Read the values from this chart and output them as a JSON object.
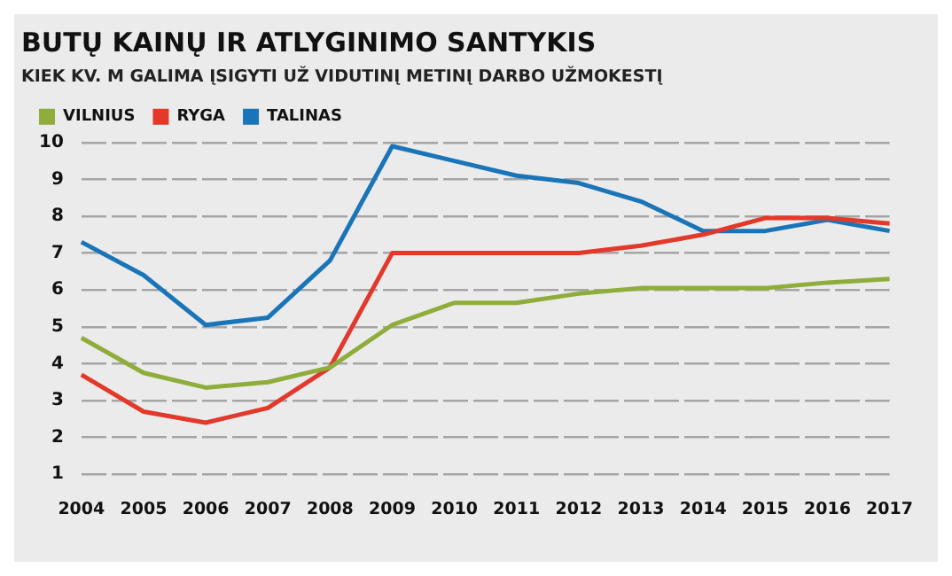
{
  "chart_data": {
    "type": "line",
    "title": "BUTŲ KAINŲ IR ATLYGINIMO SANTYKIS",
    "subtitle": "KIEK KV. M GALIMA ĮSIGYTI UŽ VIDUTINĮ METINĮ DARBO UŽMOKESTĮ",
    "categories": [
      "2004",
      "2005",
      "2006",
      "2007",
      "2008",
      "2009",
      "2010",
      "2011",
      "2012",
      "2013",
      "2014",
      "2015",
      "2016",
      "2017"
    ],
    "series": [
      {
        "name": "VILNIUS",
        "color": "#8fad3a",
        "values": [
          4.7,
          3.75,
          3.35,
          3.5,
          3.9,
          5.05,
          5.65,
          5.65,
          5.9,
          6.05,
          6.05,
          6.05,
          6.2,
          6.3
        ]
      },
      {
        "name": "RYGA",
        "color": "#e2392b",
        "values": [
          3.7,
          2.7,
          2.4,
          2.8,
          3.9,
          7,
          7,
          7,
          7,
          7.2,
          7.5,
          7.95,
          7.95,
          7.8
        ]
      },
      {
        "name": "TALINAS",
        "color": "#1a75b8",
        "values": [
          7.3,
          6.4,
          5.05,
          5.25,
          6.8,
          9.9,
          9.5,
          9.1,
          8.9,
          8.4,
          7.6,
          7.6,
          7.9,
          7.6
        ]
      }
    ],
    "ylim": [
      1,
      10
    ],
    "yticks": [
      1,
      2,
      3,
      4,
      5,
      6,
      7,
      8,
      9,
      10
    ],
    "grid": "y",
    "legend": "top left",
    "marker": "none",
    "line_style": "solid"
  }
}
